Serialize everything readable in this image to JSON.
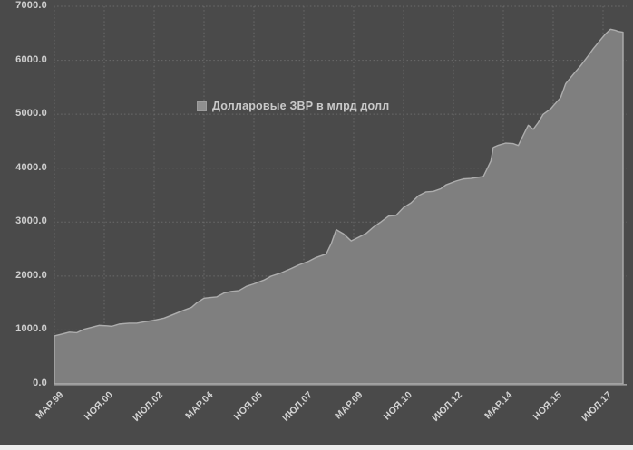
{
  "page": {
    "background_color": "#4a4a4a",
    "bottom_strip_color": "#ededed"
  },
  "chart_data": {
    "type": "area",
    "title": "",
    "xlabel": "",
    "ylabel": "",
    "grid": true,
    "legend_position": "upper-center",
    "ylim": [
      0,
      7000
    ],
    "ytick_step": 1000,
    "ytick_labels": [
      "0.0",
      "1000.0",
      "2000.0",
      "3000.0",
      "4000.0",
      "5000.0",
      "6000.0",
      "7000.0"
    ],
    "x_unit": "months since Mar-1999",
    "x_span_months": 228,
    "xtick_months": [
      0,
      20,
      40,
      60,
      80,
      100,
      120,
      140,
      160,
      180,
      200,
      220
    ],
    "xtick_labels": [
      "МАР.99",
      "НОЯ.00",
      "ИЮЛ.02",
      "МАР.04",
      "НОЯ.05",
      "ИЮЛ.07",
      "МАР.09",
      "НОЯ.10",
      "ИЮЛ.12",
      "МАР.14",
      "НОЯ.15",
      "ИЮЛ.17"
    ],
    "series": [
      {
        "name": "Долларовые ЗВР в млрд долл",
        "x_months": [
          0,
          3,
          6,
          9,
          12,
          15,
          18,
          21,
          23,
          26,
          30,
          33,
          36,
          40,
          44,
          47,
          51,
          55,
          57,
          60,
          63,
          65,
          68,
          71,
          74,
          77,
          80,
          84,
          87,
          91,
          95,
          98,
          102,
          105,
          109,
          111,
          113,
          116,
          119,
          122,
          125,
          128,
          131,
          134,
          137,
          140,
          143,
          146,
          149,
          152,
          155,
          157,
          161,
          164,
          167,
          169,
          172,
          175,
          176,
          178,
          181,
          184,
          186,
          188,
          190,
          192,
          194,
          196,
          199,
          200,
          203,
          205,
          208,
          211,
          214,
          216,
          219,
          221,
          223,
          225,
          226,
          228
        ],
        "values": [
          890,
          925,
          960,
          950,
          1015,
          1050,
          1085,
          1078,
          1068,
          1110,
          1125,
          1125,
          1150,
          1180,
          1220,
          1275,
          1350,
          1420,
          1500,
          1590,
          1605,
          1612,
          1685,
          1715,
          1730,
          1810,
          1855,
          1925,
          2000,
          2060,
          2140,
          2205,
          2275,
          2345,
          2410,
          2600,
          2860,
          2780,
          2650,
          2720,
          2790,
          2910,
          3005,
          3110,
          3125,
          3270,
          3355,
          3490,
          3560,
          3570,
          3620,
          3690,
          3760,
          3800,
          3810,
          3825,
          3845,
          4130,
          4385,
          4425,
          4465,
          4455,
          4420,
          4610,
          4795,
          4720,
          4845,
          5000,
          5100,
          5155,
          5310,
          5565,
          5735,
          5900,
          6080,
          6210,
          6380,
          6490,
          6575,
          6555,
          6535,
          6520
        ]
      }
    ],
    "colors": {
      "plot_background": "#4a4a4a",
      "area_fill": "#7f7f7f",
      "area_edge": "#adadad",
      "gridline": "#6b6b6b",
      "axis_line": "#9c9c9c",
      "tick_text": "#d0d0d0",
      "legend_text": "#c9c9c9",
      "legend_marker": "#8f8f8f"
    }
  }
}
